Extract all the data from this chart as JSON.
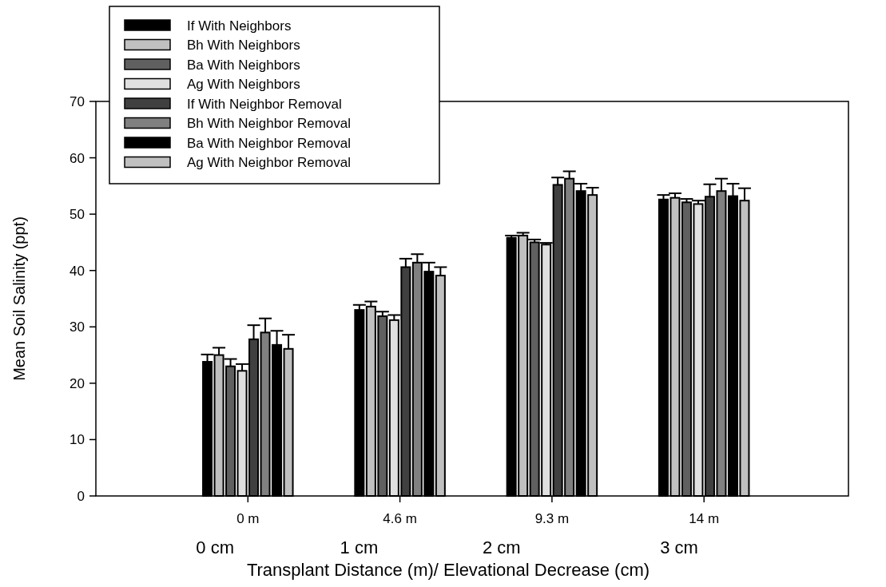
{
  "chart_data": {
    "type": "bar",
    "xlabel": "Transplant Distance (m)/ Elevational Decrease (cm)",
    "ylabel": "Mean Soil Salinity (ppt)",
    "categories": [
      "0 m",
      "4.6 m",
      "9.3 m",
      "14 m"
    ],
    "annotations": [
      "0 cm",
      "1 cm",
      "2 cm",
      "3 cm"
    ],
    "ylim": [
      0,
      70
    ],
    "yticks": [
      0,
      10,
      20,
      30,
      40,
      50,
      60,
      70
    ],
    "legend": "top left",
    "grid": false,
    "series": [
      {
        "name": "If With Neighbors",
        "color": "#000000",
        "values": [
          23.8,
          33,
          45.8,
          52.6
        ],
        "errors": [
          1.3,
          0.9,
          0.4,
          0.8
        ]
      },
      {
        "name": "Bh With Neighbors",
        "color": "#c0c0c0",
        "values": [
          25,
          33.6,
          46.2,
          52.9
        ],
        "errors": [
          1.3,
          0.9,
          0.5,
          0.8
        ]
      },
      {
        "name": "Ba With Neighbors",
        "color": "#606060",
        "values": [
          23,
          31.9,
          45,
          52.1
        ],
        "errors": [
          1.3,
          0.8,
          0.5,
          0.6
        ]
      },
      {
        "name": "Ag With Neighbors",
        "color": "#e0e0e0",
        "values": [
          22.2,
          31.2,
          44.6,
          51.8
        ],
        "errors": [
          1.2,
          0.9,
          0.3,
          0.6
        ]
      },
      {
        "name": "If With Neighbor Removal",
        "color": "#404040",
        "values": [
          27.8,
          40.6,
          55.2,
          53.1
        ],
        "errors": [
          2.5,
          1.5,
          1.3,
          2.2
        ]
      },
      {
        "name": "Bh With Neighbor Removal",
        "color": "#808080",
        "values": [
          29,
          41.4,
          56.3,
          54.1
        ],
        "errors": [
          2.5,
          1.5,
          1.3,
          2.2
        ]
      },
      {
        "name": "Ba With Neighbor Removal",
        "color": "#000000",
        "values": [
          26.8,
          39.8,
          54.1,
          53.2
        ],
        "errors": [
          2.5,
          1.6,
          1.3,
          2.2
        ]
      },
      {
        "name": "Ag With Neighbor Removal",
        "color": "#c0c0c0",
        "values": [
          26.1,
          39.1,
          53.4,
          52.4
        ],
        "errors": [
          2.5,
          1.5,
          1.3,
          2.2
        ]
      }
    ]
  }
}
